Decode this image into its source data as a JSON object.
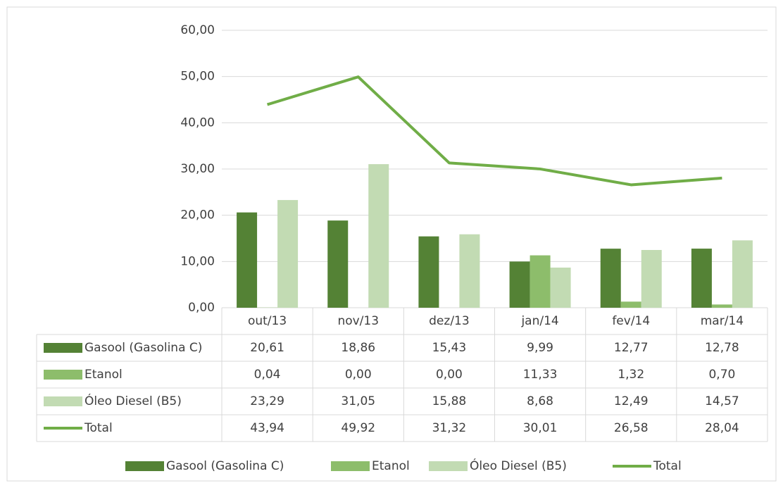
{
  "chart_data": {
    "type": "bar",
    "categories": [
      "out/13",
      "nov/13",
      "dez/13",
      "jan/14",
      "fev/14",
      "mar/14"
    ],
    "series": [
      {
        "name": "Gasool (Gasolina C)",
        "color": "#548235",
        "type": "bar",
        "values": [
          20.61,
          18.86,
          15.43,
          9.99,
          12.77,
          12.78
        ],
        "value_labels": [
          "20,61",
          "18,86",
          "15,43",
          "9,99",
          "12,77",
          "12,78"
        ]
      },
      {
        "name": "Etanol",
        "color": "#8dbd6b",
        "type": "bar",
        "values": [
          0.04,
          0.0,
          0.0,
          11.33,
          1.32,
          0.7
        ],
        "value_labels": [
          "0,04",
          "0,00",
          "0,00",
          "11,33",
          "1,32",
          "0,70"
        ]
      },
      {
        "name": "Óleo Diesel (B5)",
        "color": "#c2dbb3",
        "type": "bar",
        "values": [
          23.29,
          31.05,
          15.88,
          8.68,
          12.49,
          14.57
        ],
        "value_labels": [
          "23,29",
          "31,05",
          "15,88",
          "8,68",
          "12,49",
          "14,57"
        ]
      },
      {
        "name": "Total",
        "color": "#70ad47",
        "type": "line",
        "values": [
          43.94,
          49.92,
          31.32,
          30.01,
          26.58,
          28.04
        ],
        "value_labels": [
          "43,94",
          "49,92",
          "31,32",
          "30,01",
          "26,58",
          "28,04"
        ]
      }
    ],
    "ylim": [
      0,
      60
    ],
    "yticks": [
      {
        "value": 0,
        "label": "0,00"
      },
      {
        "value": 10,
        "label": "10,00"
      },
      {
        "value": 20,
        "label": "20,00"
      },
      {
        "value": 30,
        "label": "30,00"
      },
      {
        "value": 40,
        "label": "40,00"
      },
      {
        "value": 50,
        "label": "50,00"
      },
      {
        "value": 60,
        "label": "60,00"
      }
    ],
    "grid": true,
    "data_table": true,
    "legend": "bottom"
  }
}
